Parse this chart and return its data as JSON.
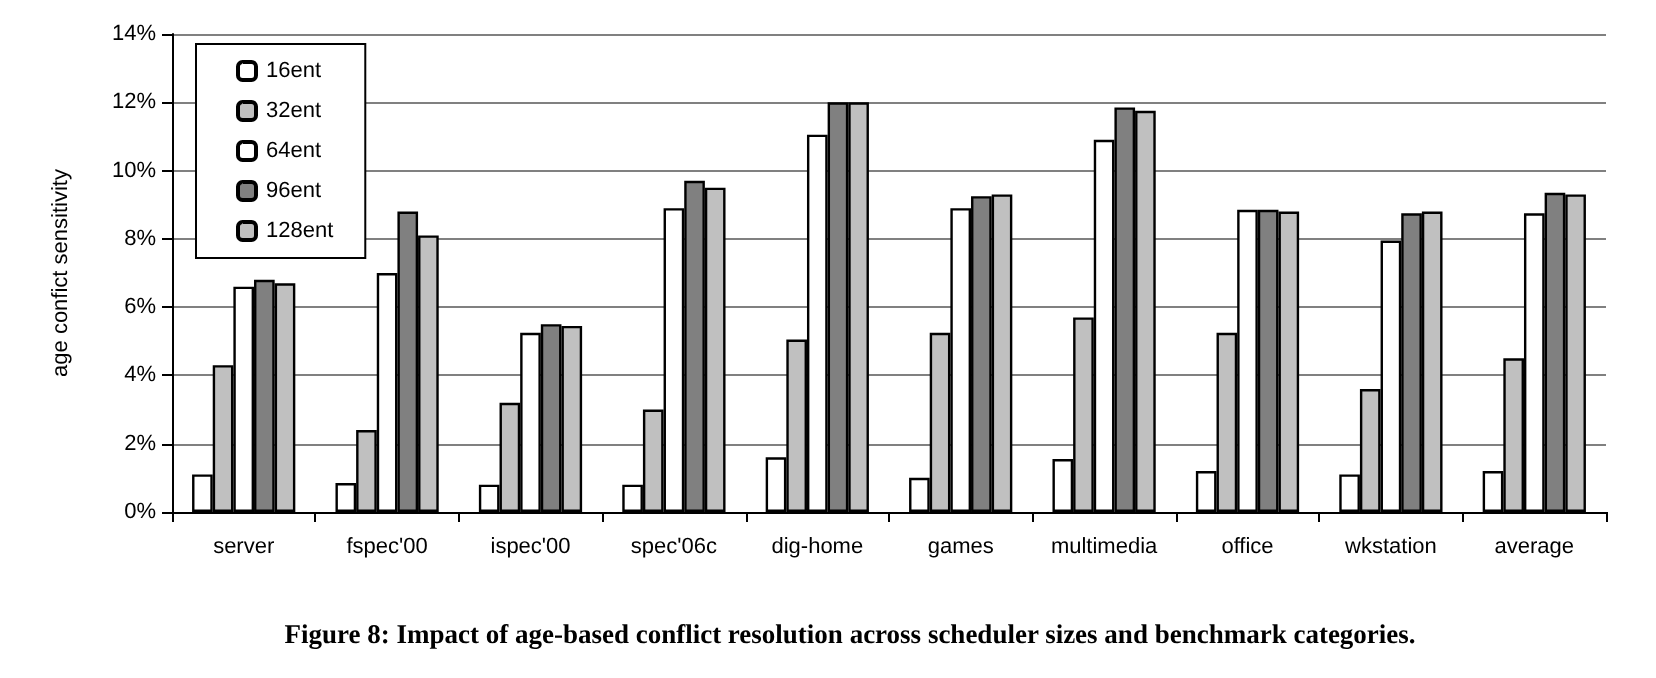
{
  "chart_data": {
    "type": "bar",
    "categories": [
      "server",
      "fspec'00",
      "ispec'00",
      "spec'06c",
      "dig-home",
      "games",
      "multimedia",
      "office",
      "wkstation",
      "average"
    ],
    "series": [
      {
        "name": "16ent",
        "color": "#ffffff",
        "values": [
          1.1,
          0.85,
          0.8,
          0.8,
          1.6,
          1.0,
          1.55,
          1.2,
          1.1,
          1.2
        ]
      },
      {
        "name": "32ent",
        "color": "#c0c0c0",
        "values": [
          4.3,
          2.4,
          3.2,
          3.0,
          5.05,
          5.25,
          5.7,
          5.25,
          3.6,
          4.5
        ]
      },
      {
        "name": "64ent",
        "color": "#ffffff",
        "values": [
          6.6,
          7.0,
          5.25,
          8.9,
          11.05,
          8.9,
          10.9,
          8.85,
          7.95,
          8.75
        ]
      },
      {
        "name": "96ent",
        "color": "#808080",
        "values": [
          6.8,
          8.8,
          5.5,
          9.7,
          12.0,
          9.25,
          11.85,
          8.85,
          8.75,
          9.35
        ]
      },
      {
        "name": "128ent",
        "color": "#c0c0c0",
        "values": [
          6.7,
          8.1,
          5.45,
          9.5,
          12.0,
          9.3,
          11.75,
          8.8,
          8.8,
          9.3
        ]
      }
    ],
    "ylabel": "age confict sensitivity",
    "ylim": [
      0,
      14
    ],
    "yticks": [
      {
        "value": 0,
        "label": "0%"
      },
      {
        "value": 2,
        "label": "2%"
      },
      {
        "value": 4,
        "label": "4%"
      },
      {
        "value": 6,
        "label": "6%"
      },
      {
        "value": 8,
        "label": "8%"
      },
      {
        "value": 10,
        "label": "10%"
      },
      {
        "value": 12,
        "label": "12%"
      },
      {
        "value": 14,
        "label": "14%"
      }
    ],
    "grid": "y",
    "legend": "top left",
    "annotations": [
      "Figure 8: Impact of age-based conflict resolution across scheduler sizes and benchmark categories."
    ]
  }
}
